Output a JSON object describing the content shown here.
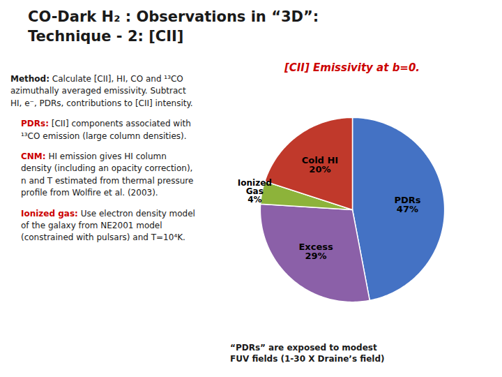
{
  "chart_data": {
    "type": "pie",
    "title": "CO-Dark H₂ : Observations in “3D”:\nTechnique - 2: [CII]",
    "subtitle": "[CII] Emissivity at b=0.",
    "categories": [
      "PDRs",
      "Excess",
      "Ionized Gas",
      "Cold HI"
    ],
    "values": [
      47,
      29,
      4,
      20
    ],
    "value_labels": [
      "47%",
      "29%",
      "4%",
      "20%"
    ],
    "colors": [
      "#4472C4",
      "#8B60A8",
      "#8DB33A",
      "#C0392B"
    ],
    "data_labels": true,
    "annotations": [
      {
        "label": "Method:",
        "text": "Calculate [CII], HI, CO and ¹³CO azimuthally averaged emissivity. Subtract HI, e⁻, PDRs, contributions to [CII] intensity."
      },
      {
        "label": "PDRs:",
        "text": "[CII] components associated with ¹³CO emission (large column densities)."
      },
      {
        "label": "CNM:",
        "text": "HI emission gives HI column density (including an opacity correction), n and T estimated from thermal pressure profile from Wolfire et al. (2003)."
      },
      {
        "label": "Ionized gas:",
        "text": "Use electron density model of the galaxy from NE2001 model (constrained with pulsars) and T=10⁴K."
      },
      {
        "text": "“PDRs” are exposed to modest\nFUV fields (1-30 X Draine’s field)"
      }
    ]
  }
}
